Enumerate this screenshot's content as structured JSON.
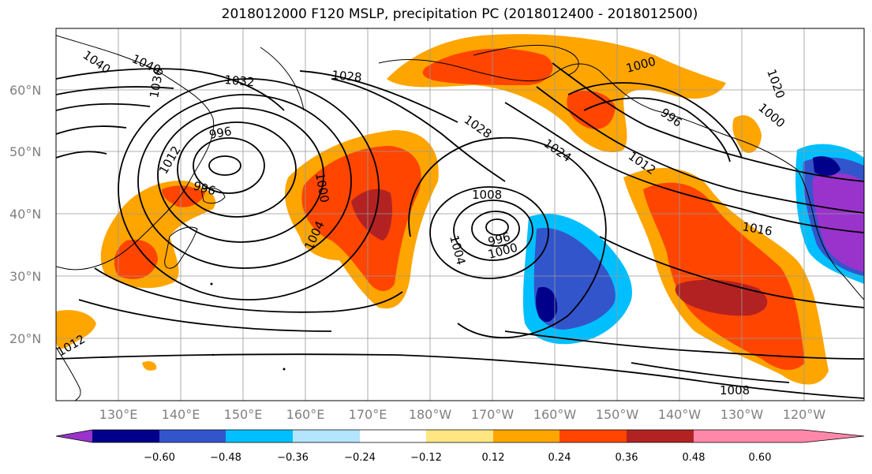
{
  "title": "2018012000 F120 MSLP, precipitation PC (2018012400 - 2018012500)",
  "lat_labels": [
    "60°N",
    "50°N",
    "40°N",
    "30°N",
    "20°N"
  ],
  "lon_labels": [
    "130°E",
    "140°E",
    "150°E",
    "160°E",
    "170°E",
    "180°W",
    "170°W",
    "160°W",
    "150°W",
    "140°W",
    "130°W",
    "120°W"
  ],
  "colorbar": {
    "tick_labels": [
      "−0.60",
      "−0.48",
      "−0.36",
      "−0.24",
      "−0.12",
      "0.12",
      "0.24",
      "0.36",
      "0.48",
      "0.60"
    ],
    "colors": [
      "#9933cc",
      "#00008b",
      "#3355cc",
      "#00bfff",
      "#b3e5ff",
      "#ffffff",
      "#ffe680",
      "#ffa500",
      "#ff4500",
      "#b22222",
      "#ff88aa"
    ]
  },
  "isobar_labels": [
    "1040",
    "1040",
    "1036",
    "1032",
    "1028",
    "996",
    "1000",
    "1004",
    "1012",
    "996",
    "1028",
    "1024",
    "1008",
    "1004",
    "996",
    "1000",
    "996",
    "1000",
    "1012",
    "1016",
    "1008",
    "1000",
    "1020",
    "1012"
  ]
}
